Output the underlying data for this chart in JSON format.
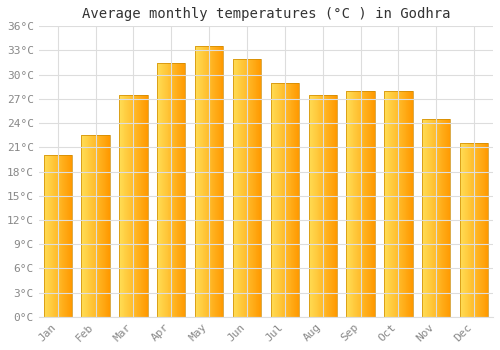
{
  "title": "Average monthly temperatures (°C ) in Godhra",
  "months": [
    "Jan",
    "Feb",
    "Mar",
    "Apr",
    "May",
    "Jun",
    "Jul",
    "Aug",
    "Sep",
    "Oct",
    "Nov",
    "Dec"
  ],
  "values": [
    20,
    22.5,
    27.5,
    31.5,
    33.5,
    32,
    29,
    27.5,
    28,
    28,
    24.5,
    21.5
  ],
  "ylim": [
    0,
    36
  ],
  "yticks": [
    0,
    3,
    6,
    9,
    12,
    15,
    18,
    21,
    24,
    27,
    30,
    33,
    36
  ],
  "ytick_labels": [
    "0°C",
    "3°C",
    "6°C",
    "9°C",
    "12°C",
    "15°C",
    "18°C",
    "21°C",
    "24°C",
    "27°C",
    "30°C",
    "33°C",
    "36°C"
  ],
  "bar_color_left": "#FFDD55",
  "bar_color_right": "#FF9900",
  "bar_border_color": "#CC8800",
  "background_color": "#FFFFFF",
  "grid_color": "#DDDDDD",
  "title_fontsize": 10,
  "tick_fontsize": 8,
  "tick_color": "#888888",
  "tick_font": "monospace",
  "bar_width": 0.75
}
